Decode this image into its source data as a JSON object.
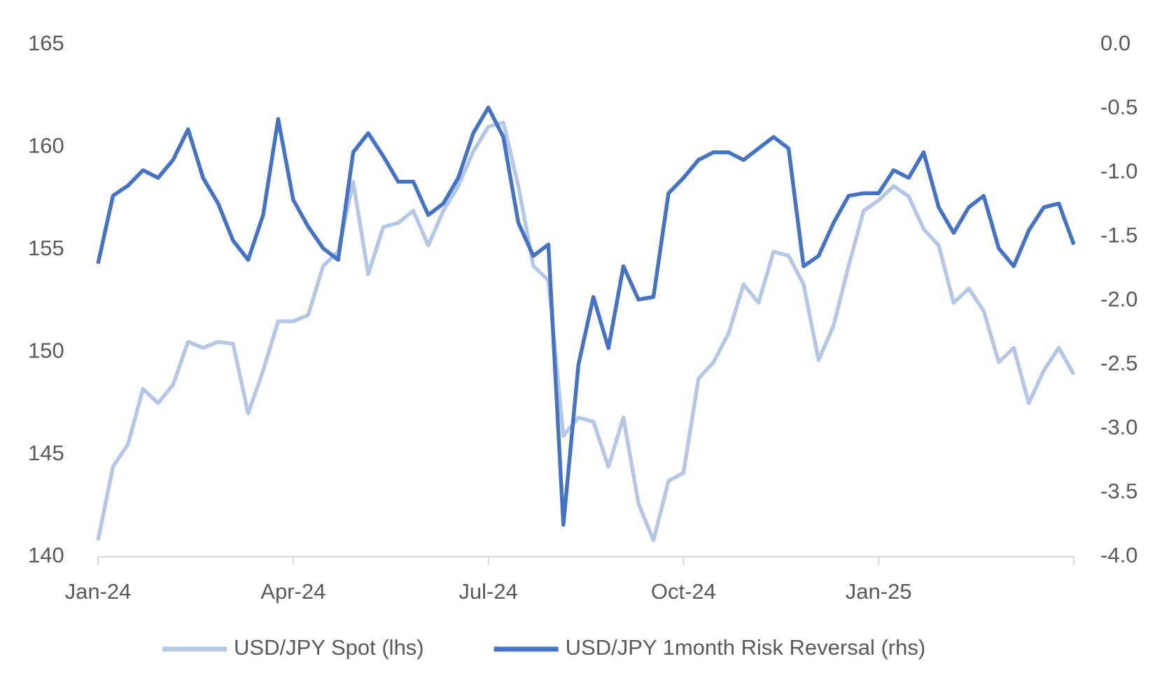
{
  "chart_data": {
    "type": "line",
    "categories": [
      "Jan-24",
      null,
      null,
      null,
      null,
      null,
      null,
      null,
      null,
      null,
      null,
      null,
      null,
      "Apr-24",
      null,
      null,
      null,
      null,
      null,
      null,
      null,
      null,
      null,
      null,
      null,
      null,
      "Jul-24",
      null,
      null,
      null,
      null,
      null,
      null,
      null,
      null,
      null,
      null,
      null,
      null,
      "Oct-24",
      null,
      null,
      null,
      null,
      null,
      null,
      null,
      null,
      null,
      null,
      null,
      null,
      "Jan-25",
      null,
      null,
      null,
      null,
      null,
      null,
      null,
      null,
      null,
      null,
      null,
      null,
      null
    ],
    "series": [
      {
        "name": "USD/JPY Spot (lhs)",
        "color": "#b4c7e7",
        "axis": "y",
        "values": [
          140.8,
          144.4,
          145.5,
          148.2,
          147.5,
          148.4,
          150.5,
          150.2,
          150.5,
          150.4,
          147.0,
          149.1,
          151.5,
          151.5,
          151.8,
          154.2,
          154.9,
          158.3,
          153.8,
          156.1,
          156.3,
          156.9,
          155.2,
          156.9,
          158.1,
          159.8,
          161.0,
          161.2,
          158.1,
          154.2,
          153.5,
          145.9,
          146.8,
          146.6,
          144.4,
          146.8,
          142.6,
          140.8,
          143.7,
          144.1,
          148.7,
          149.5,
          150.9,
          153.3,
          152.4,
          154.9,
          154.7,
          153.3,
          149.6,
          151.3,
          154.2,
          156.9,
          157.4,
          158.1,
          157.6,
          156.0,
          155.2,
          152.4,
          153.1,
          152.0,
          149.5,
          150.2,
          147.5,
          149.1,
          150.2,
          148.9
        ]
      },
      {
        "name": "USD/JPY 1month Risk Reversal (rhs)",
        "color": "#4472c4",
        "axis": "y2",
        "values": [
          -1.71,
          -1.18,
          -1.1,
          -0.98,
          -1.04,
          -0.9,
          -0.66,
          -1.04,
          -1.24,
          -1.53,
          -1.68,
          -1.33,
          -0.58,
          -1.21,
          -1.42,
          -1.59,
          -1.68,
          -0.84,
          -0.69,
          -0.87,
          -1.07,
          -1.07,
          -1.33,
          -1.24,
          -1.04,
          -0.69,
          -0.49,
          -0.72,
          -1.39,
          -1.65,
          -1.56,
          -3.75,
          -2.5,
          -1.97,
          -2.37,
          -1.73,
          -1.99,
          -1.97,
          -1.16,
          -1.04,
          -0.9,
          -0.84,
          -0.84,
          -0.9,
          -0.81,
          -0.72,
          -0.81,
          -1.73,
          -1.65,
          -1.39,
          -1.18,
          -1.16,
          -1.16,
          -0.98,
          -1.04,
          -0.84,
          -1.27,
          -1.47,
          -1.27,
          -1.18,
          -1.59,
          -1.73,
          -1.45,
          -1.27,
          -1.24,
          -1.56
        ]
      }
    ],
    "ylim": [
      140,
      165
    ],
    "yticks": [
      140,
      145,
      150,
      155,
      160,
      165
    ],
    "y2lim": [
      -4,
      0
    ],
    "y2ticks": [
      {
        "value": -4,
        "label": "-4.0"
      },
      -3.5,
      {
        "value": -3,
        "label": "-3.0"
      },
      -2.5,
      {
        "value": -2,
        "label": "-2.0"
      },
      -1.5,
      {
        "value": -1,
        "label": "-1.0"
      },
      -0.5,
      {
        "value": 0,
        "label": "0.0"
      }
    ],
    "legend": "bottom"
  }
}
